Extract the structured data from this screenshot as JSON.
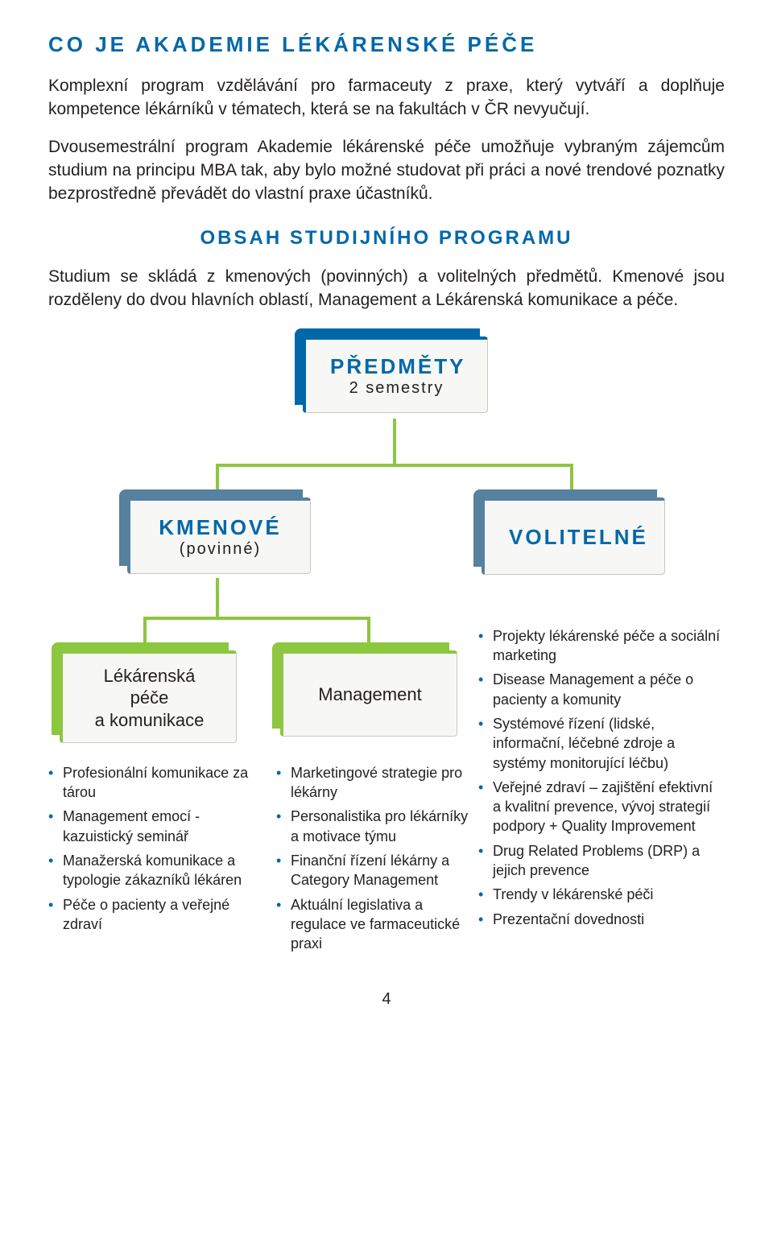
{
  "colors": {
    "heading": "#0068a9",
    "bodyText": "#231f20",
    "nodeRoot": "#0068a9",
    "nodeL2": "#56819f",
    "nodeL3": "#8dc63f",
    "connector": "#8dc63f",
    "nodeBg": "#f7f7f5",
    "bullet": "#0068a9"
  },
  "h1": "CO JE AKADEMIE LÉKÁRENSKÉ PÉČE",
  "p1": "Komplexní program vzdělávání pro farmaceuty z praxe, který vytváří a doplňuje kompetence lékárníků v tématech, která se na fakultách v ČR nevyučují.",
  "p2": "Dvousemestrální program Akademie lékárenské péče umožňuje vybraným zájemcům studium na principu MBA tak, aby bylo možné studovat při práci a nové trendové poznatky bezprostředně převádět do vlastní praxe účastníků.",
  "h2": "OBSAH STUDIJNÍHO PROGRAMU",
  "p3": "Studium se skládá z kmenových (povinných) a volitelných předmětů. Kmenové jsou rozděleny do dvou hlavních oblastí, Management a Lékárenská komunikace a péče.",
  "diagram": {
    "root": {
      "title": "PŘEDMĚTY",
      "sub": "2 semestry"
    },
    "level2": [
      {
        "title": "KMENOVÉ",
        "sub": "(povinné)"
      },
      {
        "title": "VOLITELNÉ",
        "sub": ""
      }
    ],
    "level3": [
      {
        "title": "Lékárenská\npéče\na komunikace"
      },
      {
        "title": "Management"
      }
    ]
  },
  "lists": {
    "col1": [
      "Profesionální komunikace za tárou",
      "Management emocí - kazuistický seminář",
      "Manažerská komunikace a typologie zákazníků lékáren",
      "Péče o pacienty a veřejné zdraví"
    ],
    "col2": [
      "Marketingové strategie pro lékárny",
      "Personalistika pro lékárníky a motivace týmu",
      "Finanční řízení lékárny a Category Management",
      "Aktuální legislativa a regulace ve farmaceutické praxi"
    ],
    "col3": [
      "Projekty lékárenské péče a sociální marketing",
      "Disease Management a péče o pacienty a komunity",
      "Systémové řízení (lidské, informační, léčebné zdroje a systémy monitorující léčbu)",
      "Veřejné zdraví – zajištění efektivní a kvalitní prevence, vývoj strategií podpory + Quality Improvement",
      "Drug Related Problems (DRP) a jejich prevence",
      "Trendy v lékárenské péči",
      "Prezentační dovednosti"
    ]
  },
  "pageNumber": "4"
}
